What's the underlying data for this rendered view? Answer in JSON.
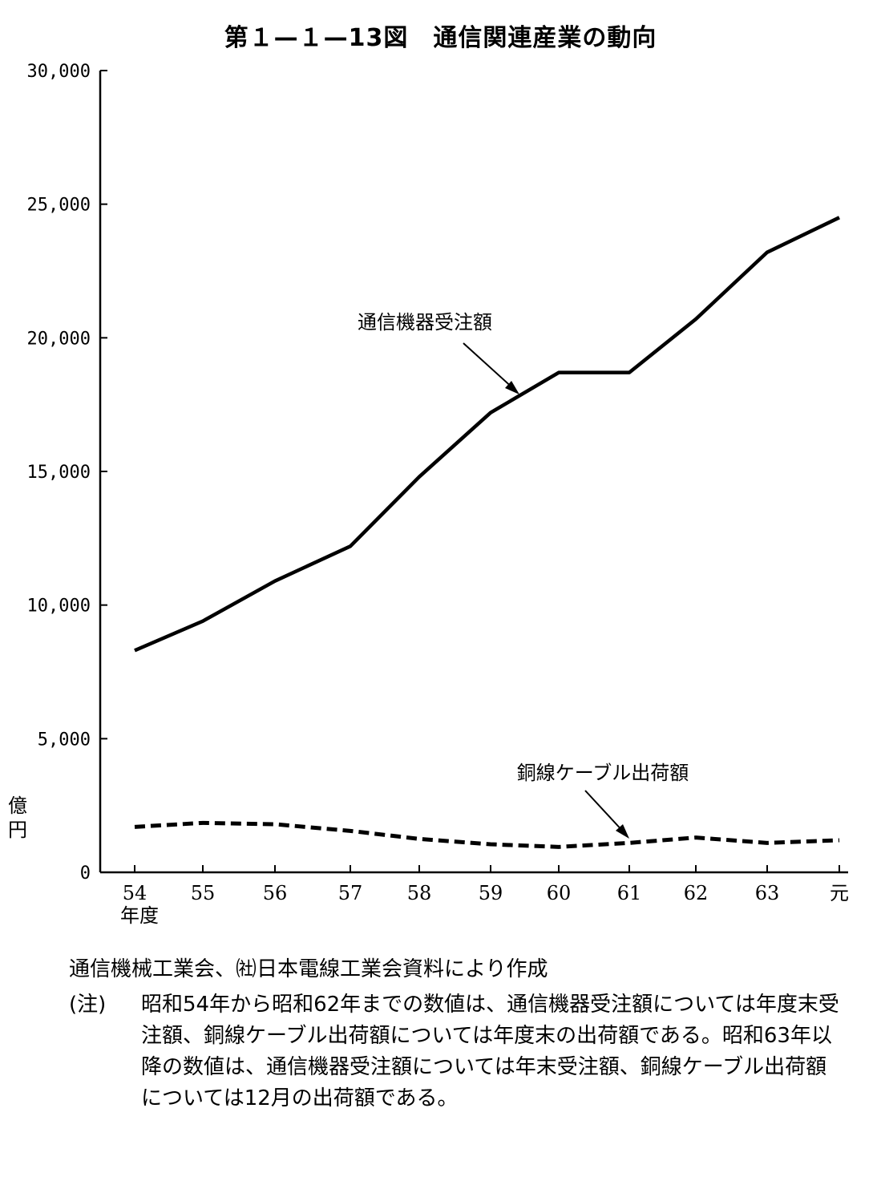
{
  "title": "第１—１—13図　通信関連産業の動向",
  "chart_data": {
    "type": "line",
    "categories": [
      "54",
      "55",
      "56",
      "57",
      "58",
      "59",
      "60",
      "61",
      "62",
      "63",
      "元"
    ],
    "x_unit_label": "年度",
    "y_unit_label": "億円",
    "ylim": [
      0,
      30000
    ],
    "yticks": [
      0,
      5000,
      10000,
      15000,
      20000,
      25000,
      30000
    ],
    "ytick_labels": [
      "0",
      "5,000",
      "10,000",
      "15,000",
      "20,000",
      "25,000",
      "30,000"
    ],
    "series": [
      {
        "name": "通信機器受注額",
        "style": "solid",
        "values": [
          8300,
          9400,
          10900,
          12200,
          14800,
          17200,
          18700,
          18700,
          20700,
          23200,
          24500
        ]
      },
      {
        "name": "銅線ケーブル出荷額",
        "style": "dashed",
        "values": [
          1700,
          1850,
          1800,
          1550,
          1250,
          1050,
          950,
          1100,
          1300,
          1100,
          1200
        ]
      }
    ],
    "annotations": [
      "通信機器受注額",
      "銅線ケーブル出荷額"
    ]
  },
  "source": "通信機械工業会、㈳日本電線工業会資料により作成",
  "note_label": "(注)",
  "note_text": "昭和54年から昭和62年までの数値は、通信機器受注額については年度末受注額、銅線ケーブル出荷額については年度末の出荷額である。昭和63年以降の数値は、通信機器受注額については年末受注額、銅線ケーブル出荷額については12月の出荷額である。"
}
